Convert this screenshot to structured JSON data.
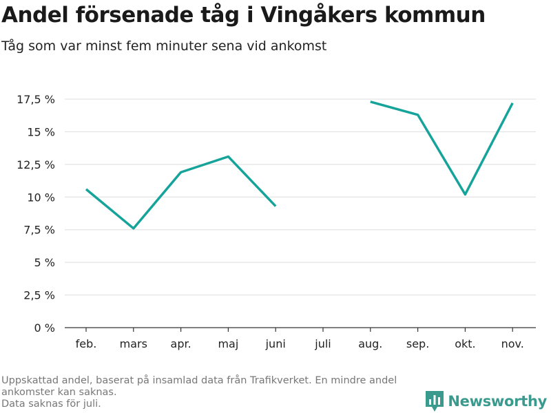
{
  "header": {
    "title": "Andel försenade tåg i Vingåkers kommun",
    "subtitle": "Tåg som var minst fem minuter sena vid ankomst"
  },
  "footer": {
    "note_line1": "Uppskattad andel, baserat på insamlad data från Trafikverket. En mindre andel",
    "note_line2": "ankomster kan saknas.",
    "note_line3": "Data saknas för juli.",
    "brand": "Newsworthy",
    "brand_color": "#3a9a8e"
  },
  "chart_data": {
    "type": "line",
    "title": "Andel försenade tåg i Vingåkers kommun",
    "subtitle": "Tåg som var minst fem minuter sena vid ankomst",
    "categories": [
      "feb.",
      "mars",
      "apr.",
      "maj",
      "juni",
      "juli",
      "aug.",
      "sep.",
      "okt.",
      "nov."
    ],
    "series": [
      {
        "values": [
          10.6,
          7.6,
          11.9,
          13.1,
          9.3,
          null,
          17.3,
          16.3,
          10.2,
          17.2
        ]
      }
    ],
    "yticks": [
      0,
      2.5,
      5,
      7.5,
      10,
      12.5,
      15,
      17.5
    ],
    "ytick_labels": [
      "0 %",
      "2,5 %",
      "5 %",
      "7,5 %",
      "10 %",
      "12,5 %",
      "15 %",
      "17,5 %"
    ],
    "ylim": [
      0,
      17.5
    ],
    "grid": true,
    "line_color": "#16a39a"
  }
}
